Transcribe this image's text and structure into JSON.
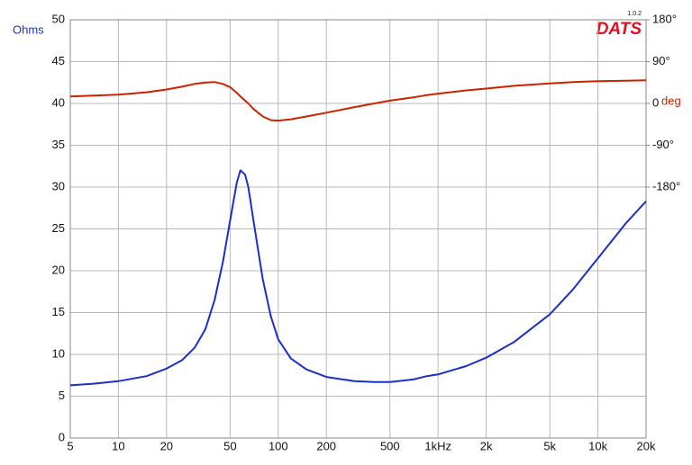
{
  "chart_data": {
    "type": "line",
    "logo": "DATS",
    "version": "1.0.2",
    "ylabel": "Ohms",
    "y2label": "deg",
    "xscale": "log",
    "grid": true,
    "xlim": [
      5,
      20000
    ],
    "xticks": [
      5,
      10,
      20,
      50,
      100,
      200,
      500,
      {
        "value": 1000,
        "label": "1kHz"
      },
      {
        "value": 2000,
        "label": "2k"
      },
      {
        "value": 5000,
        "label": "5k"
      },
      {
        "value": 10000,
        "label": "10k"
      },
      {
        "value": 20000,
        "label": "20k"
      }
    ],
    "ylim": [
      0,
      50
    ],
    "yticks": [
      0,
      5,
      10,
      15,
      20,
      25,
      30,
      35,
      40,
      45,
      50
    ],
    "y2lim": [
      -720,
      180
    ],
    "y2ticks": [
      {
        "value": -180,
        "label": "-180°"
      },
      {
        "value": -90,
        "label": "-90°"
      },
      0,
      {
        "value": 90,
        "label": "90°"
      },
      {
        "value": 180,
        "label": "180°"
      }
    ],
    "x": [
      5,
      7,
      10,
      15,
      20,
      25,
      30,
      35,
      40,
      45,
      50,
      55,
      58,
      62,
      65,
      70,
      80,
      90,
      100,
      120,
      150,
      200,
      300,
      400,
      500,
      700,
      850,
      1000,
      1500,
      2000,
      3000,
      5000,
      7000,
      10000,
      15000,
      20000
    ],
    "series": [
      {
        "color": "#1a2fc9",
        "values": [
          6.3,
          6.5,
          6.8,
          7.4,
          8.3,
          9.3,
          10.8,
          13,
          16.5,
          21,
          26,
          30.5,
          32,
          31.5,
          30,
          26,
          19,
          14.5,
          11.8,
          9.5,
          8.2,
          7.3,
          6.8,
          6.7,
          6.7,
          7.0,
          7.4,
          7.6,
          8.6,
          9.6,
          11.5,
          14.8,
          17.8,
          21.5,
          25.7,
          28.3
        ]
      },
      {
        "color": "#cc2200",
        "axis": "y2",
        "values": [
          15,
          17,
          19,
          24,
          30,
          36,
          42,
          45,
          46,
          42,
          35,
          23,
          15,
          6,
          0,
          -12,
          -28,
          -36,
          -37,
          -34,
          -28,
          -20,
          -8,
          0,
          6,
          13,
          18,
          21,
          28,
          32,
          38,
          43,
          46,
          48,
          49,
          50
        ]
      }
    ]
  }
}
